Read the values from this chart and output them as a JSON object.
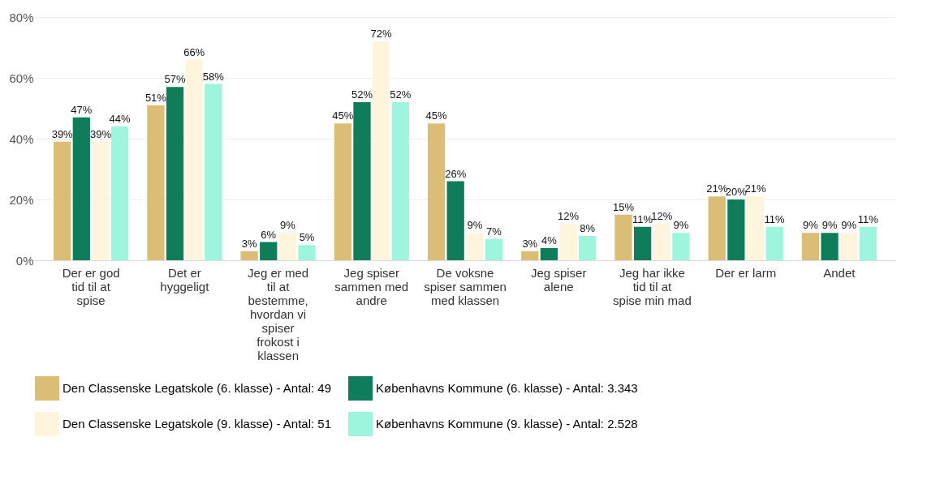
{
  "chart_data": {
    "type": "bar",
    "categories": [
      "Der er god tid til at spise",
      "Det er hyggeligt",
      "Jeg er med til at bestemme, hvordan vi spiser frokost i klassen",
      "Jeg spiser sammen med andre",
      "De voksne spiser sammen med klassen",
      "Jeg spiser alene",
      "Jeg har ikke tid til at spise min mad",
      "Der er larm",
      "Andet"
    ],
    "series": [
      {
        "name": "Den Classenske Legatskole (6. klasse) - Antal: 49",
        "color": "#dbbd76",
        "values": [
          39,
          51,
          3,
          45,
          45,
          3,
          15,
          21,
          9
        ],
        "value_labels": [
          "39%",
          "51%",
          "3%",
          "45%",
          "45%",
          "3%",
          "15%",
          "21%",
          "9%"
        ]
      },
      {
        "name": "Københavns Kommune (6. klasse) - Antal: 3.343",
        "color": "#0f7d5a",
        "values": [
          47,
          57,
          6,
          52,
          26,
          4,
          11,
          20,
          9
        ],
        "value_labels": [
          "47%",
          "57%",
          "6%",
          "52%",
          "26%",
          "4%",
          "11%",
          "20%",
          "9%"
        ]
      },
      {
        "name": "Den Classenske Legatskole (9. klasse) - Antal: 51",
        "color": "#fff5dc",
        "values": [
          39,
          66,
          9,
          72,
          9,
          12,
          12,
          21,
          9
        ],
        "value_labels": [
          "39%",
          "66%",
          "9%",
          "72%",
          "9%",
          "12%",
          "12%",
          "21%",
          "9%"
        ]
      },
      {
        "name": "Københavns Kommune (9. klasse) - Antal: 2.528",
        "color": "#9ef5de",
        "values": [
          44,
          58,
          5,
          52,
          7,
          8,
          9,
          11,
          11
        ],
        "value_labels": [
          "44%",
          "58%",
          "5%",
          "52%",
          "7%",
          "8%",
          "9%",
          "11%",
          "11%"
        ]
      }
    ],
    "ylim": [
      0,
      80
    ],
    "yticks": [
      {
        "value": 0,
        "label": "0%"
      },
      {
        "value": 20,
        "label": "20%"
      },
      {
        "value": 40,
        "label": "40%"
      },
      {
        "value": 60,
        "label": "60%"
      },
      {
        "value": 80,
        "label": "80%"
      }
    ],
    "grid": "y",
    "legend": "bottom"
  }
}
